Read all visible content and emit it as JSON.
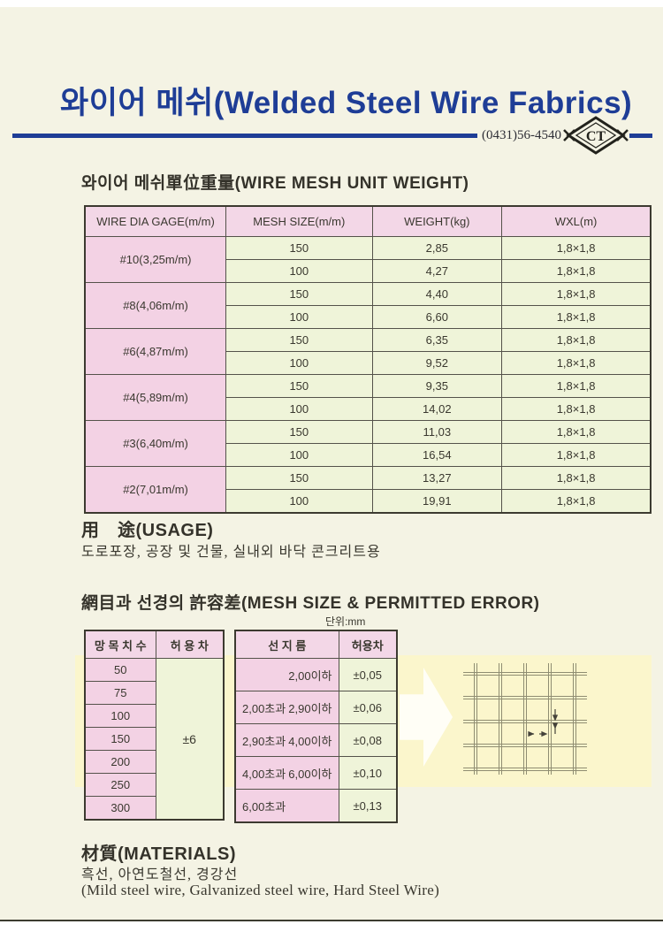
{
  "header": {
    "title": "와이어 메쉬(Welded Steel Wire Fabrics)",
    "phone": "(0431)56-4540",
    "logo_text": "CT"
  },
  "unit_weight": {
    "heading": "와이어 메쉬單位重量(WIRE MESH UNIT WEIGHT)",
    "columns": [
      "WIRE DIA GAGE(m/m)",
      "MESH SIZE(m/m)",
      "WEIGHT(kg)",
      "WXL(m)"
    ],
    "groups": [
      {
        "gage": "#10(3,25m/m)",
        "rows": [
          [
            "150",
            "2,85",
            "1,8×1,8"
          ],
          [
            "100",
            "4,27",
            "1,8×1,8"
          ]
        ]
      },
      {
        "gage": "#8(4,06m/m)",
        "rows": [
          [
            "150",
            "4,40",
            "1,8×1,8"
          ],
          [
            "100",
            "6,60",
            "1,8×1,8"
          ]
        ]
      },
      {
        "gage": "#6(4,87m/m)",
        "rows": [
          [
            "150",
            "6,35",
            "1,8×1,8"
          ],
          [
            "100",
            "9,52",
            "1,8×1,8"
          ]
        ]
      },
      {
        "gage": "#4(5,89m/m)",
        "rows": [
          [
            "150",
            "9,35",
            "1,8×1,8"
          ],
          [
            "100",
            "14,02",
            "1,8×1,8"
          ]
        ]
      },
      {
        "gage": "#3(6,40m/m)",
        "rows": [
          [
            "150",
            "11,03",
            "1,8×1,8"
          ],
          [
            "100",
            "16,54",
            "1,8×1,8"
          ]
        ]
      },
      {
        "gage": "#2(7,01m/m)",
        "rows": [
          [
            "150",
            "13,27",
            "1,8×1,8"
          ],
          [
            "100",
            "19,91",
            "1,8×1,8"
          ]
        ]
      }
    ]
  },
  "usage": {
    "heading": "用　途(USAGE)",
    "text": "도로포장, 공장 및 건물, 실내외 바닥 콘크리트용"
  },
  "tolerance": {
    "heading": "網目과 선경의 許容差(MESH SIZE & PERMITTED ERROR)",
    "unit_label": "단위:mm",
    "mesh_table": {
      "columns": [
        "망 목 치 수",
        "허 용 차"
      ],
      "sizes": [
        "50",
        "75",
        "100",
        "150",
        "200",
        "250",
        "300"
      ],
      "tolerance": "±6"
    },
    "wire_table": {
      "columns": [
        "선 지 름",
        "허용차"
      ],
      "rows": [
        {
          "parts": [
            "2,00이하"
          ],
          "align": "right",
          "tol": "±0,05"
        },
        {
          "parts": [
            "2,00초과",
            "2,90이하"
          ],
          "align": "split",
          "tol": "±0,06"
        },
        {
          "parts": [
            "2,90초과",
            "4,00이하"
          ],
          "align": "split",
          "tol": "±0,08"
        },
        {
          "parts": [
            "4,00초과",
            "6,00이하"
          ],
          "align": "split",
          "tol": "±0,10"
        },
        {
          "parts": [
            "6,00초과"
          ],
          "align": "left",
          "tol": "±0,13"
        }
      ]
    }
  },
  "materials": {
    "heading": "材質(MATERIALS)",
    "korean": "흑선, 아연도철선, 경강선",
    "english": "(Mild steel wire, Galvanized steel wire, Hard Steel Wire)"
  },
  "colors": {
    "accent_blue": "#1e3d96",
    "header_pink": "#f3d7e7",
    "cell_pink": "#f3d2e4",
    "cell_green": "#eff4d9",
    "band_yellow": "#fbf6cc",
    "page_cream": "#f4f3e4"
  }
}
